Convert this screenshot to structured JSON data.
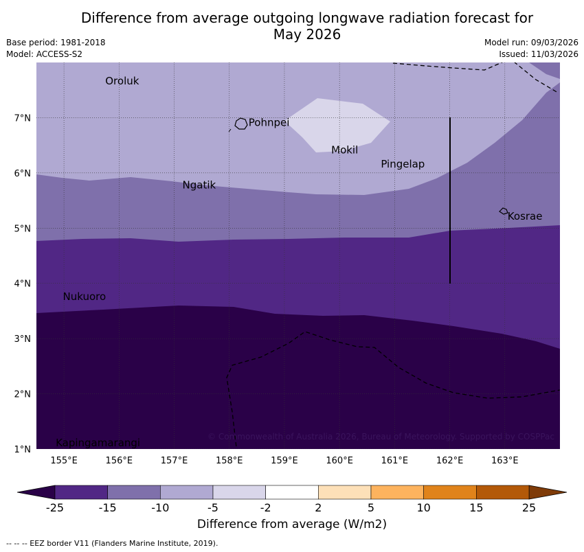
{
  "title_line1": "Difference from average outgoing longwave radiation forecast for",
  "title_line2": "May 2026",
  "base_period": "Base period: 1981-2018",
  "model": "Model: ACCESS-S2",
  "model_run": "Model run: 09/03/2026",
  "issued": "Issued: 11/03/2026",
  "copyright": "© Commonwealth of Australia 2026, Bureau of Meteorology. Supported by COSPPac",
  "places": [
    {
      "name": "Oroluk",
      "lon": 155.75,
      "lat": 7.6
    },
    {
      "name": "Pohnpei",
      "lon": 158.35,
      "lat": 6.85
    },
    {
      "name": "Mokil",
      "lon": 159.85,
      "lat": 6.35
    },
    {
      "name": "Pingelap",
      "lon": 160.75,
      "lat": 6.1
    },
    {
      "name": "Ngatik",
      "lon": 157.15,
      "lat": 5.72
    },
    {
      "name": "Kosrae",
      "lon": 163.05,
      "lat": 5.15
    },
    {
      "name": "Nukuoro",
      "lon": 154.98,
      "lat": 3.7
    },
    {
      "name": "Kapingamarangi",
      "lon": 154.85,
      "lat": 1.05
    }
  ],
  "x_ticks": [
    "155°E",
    "156°E",
    "157°E",
    "158°E",
    "159°E",
    "160°E",
    "161°E",
    "162°E",
    "163°E"
  ],
  "x_tick_values": [
    155,
    156,
    157,
    158,
    159,
    160,
    161,
    162,
    163
  ],
  "y_ticks": [
    "7°N",
    "6°N",
    "5°N",
    "4°N",
    "3°N",
    "2°N",
    "1°N"
  ],
  "y_tick_values": [
    7,
    6,
    5,
    4,
    3,
    2,
    1
  ],
  "extent": {
    "lon_min": 154.5,
    "lon_max": 164.0,
    "lat_min": 1.0,
    "lat_max": 8.0
  },
  "colorbar": {
    "labels": [
      "-25",
      "-15",
      "-10",
      "-5",
      "-2",
      "2",
      "5",
      "10",
      "15",
      "25"
    ],
    "colors": [
      "#512785",
      "#7f70ab",
      "#b0a9d2",
      "#d9d6ea",
      "#ffffff",
      "#fde0b8",
      "#fdb35e",
      "#e0831b",
      "#b35908"
    ],
    "under_color": "#2a0148",
    "over_color": "#7f3b08",
    "title": "Difference from average (W/m2)"
  },
  "footer": "--  --  -- EEZ border V11 (Flanders Marine Institute, 2019)."
}
